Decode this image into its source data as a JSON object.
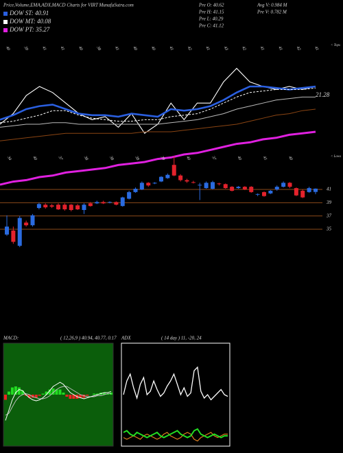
{
  "chart_data": [
    {
      "type": "candlestick",
      "title": "Price,Volume,EMA,ADX,MACD Charts for VIRT MunafaSutra.com",
      "annotations": [
        "Pre   O: 40.62",
        "Pre   H: 41.15",
        "Pre   L: 40.29",
        "Pre   C: 41.12",
        "Avg  V: 0.984  M",
        "Pre   V: 0.782  M"
      ],
      "open": [
        34.2,
        34.8,
        32.5,
        36.0,
        35.6,
        38.2,
        38.7,
        38.6,
        38.7,
        38.7,
        38.7,
        38.6,
        37.9,
        38.9,
        38.9,
        39.1,
        39.0,
        39.1,
        38.5,
        39.6,
        40.6,
        41.0,
        42.0,
        41.9,
        42.2,
        42.7,
        44.7,
        43.1,
        42.4,
        42.1,
        41.6,
        41.2,
        41.1,
        41.9,
        41.8,
        41.4,
        41.2,
        41.4,
        41.4,
        40.2,
        40.6,
        40.4,
        41.0,
        41.4,
        42.0,
        41.2,
        40.8,
        40.6,
        40.62
      ],
      "high": [
        37.1,
        35.4,
        37.0,
        36.3,
        37.3,
        39.0,
        38.9,
        38.8,
        38.9,
        38.9,
        38.8,
        38.8,
        38.9,
        39.1,
        39.3,
        39.3,
        39.2,
        39.2,
        39.9,
        40.8,
        41.3,
        42.2,
        42.1,
        42.1,
        43.0,
        43.4,
        46.0,
        43.3,
        42.6,
        42.3,
        42.0,
        42.2,
        42.3,
        42.0,
        41.9,
        41.5,
        41.5,
        41.5,
        41.5,
        40.4,
        40.7,
        40.9,
        41.6,
        42.2,
        42.1,
        41.3,
        41.0,
        41.4,
        41.15
      ],
      "low": [
        34.0,
        32.8,
        32.3,
        35.4,
        35.4,
        38.0,
        38.1,
        38.2,
        37.9,
        37.8,
        37.7,
        37.9,
        37.3,
        38.4,
        38.8,
        38.8,
        38.9,
        38.6,
        38.4,
        39.5,
        40.5,
        40.9,
        41.4,
        41.8,
        42.1,
        42.6,
        43.0,
        42.2,
        42.0,
        41.9,
        39.4,
        41.1,
        41.0,
        41.6,
        41.1,
        40.7,
        41.1,
        40.9,
        40.5,
        40.0,
        39.9,
        40.3,
        40.8,
        41.3,
        41.2,
        40.0,
        39.7,
        40.5,
        40.29
      ],
      "close": [
        35.4,
        33.1,
        36.7,
        35.6,
        37.1,
        38.8,
        38.3,
        38.4,
        38.0,
        38.0,
        37.9,
        38.0,
        38.7,
        38.5,
        39.1,
        38.9,
        39.1,
        38.7,
        39.8,
        40.6,
        41.1,
        42.0,
        41.6,
        42.0,
        42.9,
        43.2,
        43.1,
        42.4,
        42.2,
        42.0,
        41.7,
        42.0,
        42.1,
        41.8,
        41.2,
        40.8,
        41.4,
        41.0,
        40.6,
        40.3,
        40.0,
        40.8,
        41.4,
        42.0,
        41.4,
        40.1,
        39.8,
        41.2,
        41.12
      ],
      "up_color": "#2a6be0",
      "down_color": "#e3222c",
      "ylim": [
        32,
        47
      ],
      "yticks": [
        41,
        39,
        37,
        35
      ],
      "grid": true,
      "grid_color": "#8b4a1a"
    },
    {
      "type": "line",
      "ylim": [
        0,
        100
      ],
      "series": [
        {
          "color": "#ffffff",
          "values": [
            45,
            52,
            64,
            70,
            66,
            59,
            52,
            48,
            50,
            43,
            52,
            39,
            45,
            59,
            48,
            59,
            59,
            73,
            82,
            73,
            70,
            68,
            70,
            68,
            70
          ]
        },
        {
          "name": "DOW ST: 40.91",
          "color": "#2a5fe0",
          "values": [
            48,
            51,
            55,
            57,
            58,
            55,
            52,
            51,
            51,
            50,
            52,
            51,
            50,
            55,
            54,
            55,
            57,
            61,
            66,
            70,
            70,
            69,
            68,
            69,
            70
          ]
        },
        {
          "name": "DOW MT: 40.08",
          "color": "#ffffff",
          "dashed": true,
          "values": [
            46,
            47,
            49,
            51,
            54,
            54,
            51,
            49,
            48,
            47,
            47,
            48,
            48,
            50,
            51,
            52,
            55,
            59,
            63,
            66,
            67,
            68,
            68,
            68,
            69
          ]
        },
        {
          "color": "#bbbbbb",
          "values": [
            43,
            44,
            45,
            45,
            46,
            46,
            45,
            45,
            45,
            45,
            45,
            45,
            45,
            46,
            47,
            48,
            50,
            52,
            55,
            57,
            59,
            61,
            62,
            63,
            63
          ]
        },
        {
          "color": "#8b4513",
          "values": [
            34,
            35,
            36,
            37,
            38,
            39,
            39,
            39,
            39,
            39,
            39,
            40,
            40,
            40,
            41,
            42,
            43,
            44,
            45,
            47,
            49,
            51,
            52,
            54,
            55
          ]
        },
        {
          "name": "DOW PT: 35.27",
          "color": "#e020e0",
          "values": [
            5,
            7,
            8,
            10,
            11,
            13,
            14,
            15,
            16,
            18,
            19,
            20,
            22,
            23,
            25,
            26,
            28,
            30,
            32,
            33,
            35,
            36,
            38,
            39,
            40
          ]
        }
      ],
      "legend_order": [
        1,
        2,
        5
      ],
      "value_note": "21.28",
      "tops_label": "< Tops",
      "lows_label": "< Lows",
      "tops": [
        "40",
        "39",
        "41",
        "41",
        "40",
        "38",
        "41",
        "40",
        "40",
        "41",
        "42",
        "41",
        "43",
        "42",
        "41",
        "41",
        "42",
        "41"
      ],
      "lows": [
        "34",
        "40",
        "37",
        "38",
        "38",
        "38",
        "39",
        "40",
        "37",
        "40",
        "41",
        "40"
      ]
    },
    {
      "type": "macd",
      "title": "MACD:",
      "subtitle": "( 12,26,9 ) 40.94, 40.77, 0.17",
      "ylim": [
        -0.5,
        0.5
      ],
      "background": "#0b5e0b",
      "macd": [
        -0.25,
        -0.15,
        -0.05,
        0.02,
        0.05,
        0.04,
        0.0,
        -0.03,
        -0.05,
        -0.06,
        -0.05,
        -0.03,
        0.0,
        0.04,
        0.08,
        0.1,
        0.12,
        0.1,
        0.06,
        0.02,
        0.0,
        -0.02,
        -0.03,
        -0.04,
        -0.03,
        -0.02,
        -0.01,
        0.0,
        0.01,
        0.02,
        0.02,
        0.03
      ],
      "signal": [
        -0.2,
        -0.18,
        -0.12,
        -0.06,
        -0.02,
        0.0,
        0.01,
        0.0,
        -0.02,
        -0.03,
        -0.04,
        -0.04,
        -0.03,
        -0.01,
        0.02,
        0.05,
        0.07,
        0.08,
        0.08,
        0.06,
        0.04,
        0.02,
        0.0,
        -0.01,
        -0.02,
        -0.02,
        -0.02,
        -0.01,
        -0.01,
        0.0,
        0.01,
        0.01
      ],
      "histogram": [
        -0.05,
        0.03,
        0.07,
        0.08,
        0.07,
        0.04,
        -0.01,
        -0.03,
        -0.03,
        -0.03,
        -0.01,
        0.01,
        0.03,
        0.05,
        0.06,
        0.05,
        0.05,
        0.02,
        -0.02,
        -0.04,
        -0.04,
        -0.04,
        -0.03,
        -0.03,
        -0.01,
        0.0,
        0.01,
        0.01,
        0.02,
        0.02,
        0.01,
        0.02
      ]
    },
    {
      "type": "adx",
      "title": "ADX",
      "subtitle": "( 14  day ) 11,  -20,  24",
      "ylim": [
        0,
        60
      ],
      "adx": [
        30,
        38,
        42,
        34,
        28,
        36,
        40,
        30,
        32,
        38,
        33,
        29,
        31,
        35,
        38,
        42,
        36,
        30,
        34,
        29,
        31,
        44,
        46,
        32,
        28,
        30,
        27,
        29,
        31,
        33,
        30,
        29
      ],
      "plus_di": [
        8,
        9,
        7,
        6,
        8,
        7,
        6,
        5,
        6,
        7,
        8,
        6,
        5,
        6,
        7,
        8,
        9,
        7,
        6,
        5,
        6,
        9,
        10,
        7,
        6,
        5,
        6,
        7,
        6,
        5,
        6,
        6
      ],
      "minus_di": [
        5,
        4,
        5,
        6,
        5,
        4,
        6,
        7,
        6,
        5,
        4,
        5,
        7,
        8,
        6,
        5,
        4,
        5,
        7,
        8,
        7,
        4,
        3,
        5,
        6,
        7,
        8,
        6,
        5,
        6,
        7,
        7
      ]
    }
  ]
}
